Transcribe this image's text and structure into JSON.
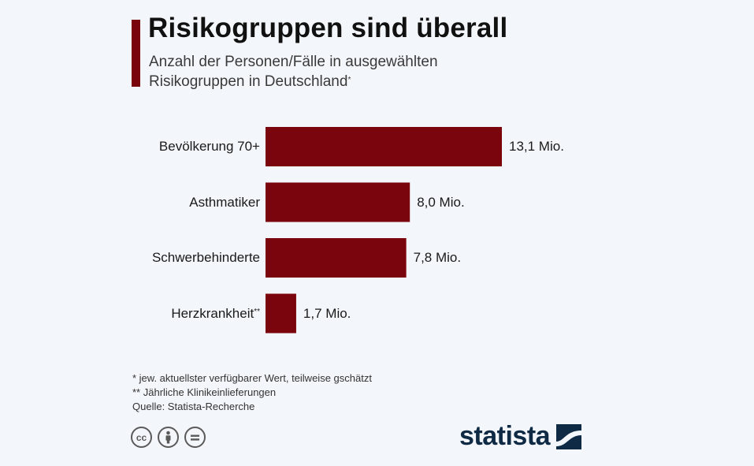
{
  "colors": {
    "accent": "#7b050c",
    "bar": "#7b050c",
    "logo": "#0f2a44"
  },
  "header": {
    "title": "Risikogruppen sind überall",
    "subtitle_line1": "Anzahl der Personen/Fälle in ausgewählten",
    "subtitle_line2": "Risikogruppen in Deutschland",
    "subtitle_marker": "*"
  },
  "chart_data": {
    "type": "bar",
    "orientation": "horizontal",
    "categories": [
      "Bevölkerung 70+",
      "Asthmatiker",
      "Schwerbehinderte",
      "Herzkrankheit"
    ],
    "category_markers": [
      "",
      "",
      "",
      "**"
    ],
    "values": [
      13.1,
      8.0,
      7.8,
      1.7
    ],
    "value_labels": [
      "13,1 Mio.",
      "8,0 Mio.",
      "7,8 Mio.",
      "1,7 Mio."
    ],
    "title": "Risikogruppen sind überall",
    "xlim": [
      0,
      13.1
    ],
    "grid": false,
    "legend": "none"
  },
  "footnotes": {
    "note1": "*   jew. aktuellster verfügbarer Wert, teilweise gschätzt",
    "note2": "** Jährliche Klinikeinlieferungen",
    "source": "Quelle: Statista-Recherche"
  },
  "license_icons": [
    "cc-icon",
    "attribution-icon",
    "no-derivatives-icon"
  ],
  "brand": {
    "name": "statista"
  }
}
